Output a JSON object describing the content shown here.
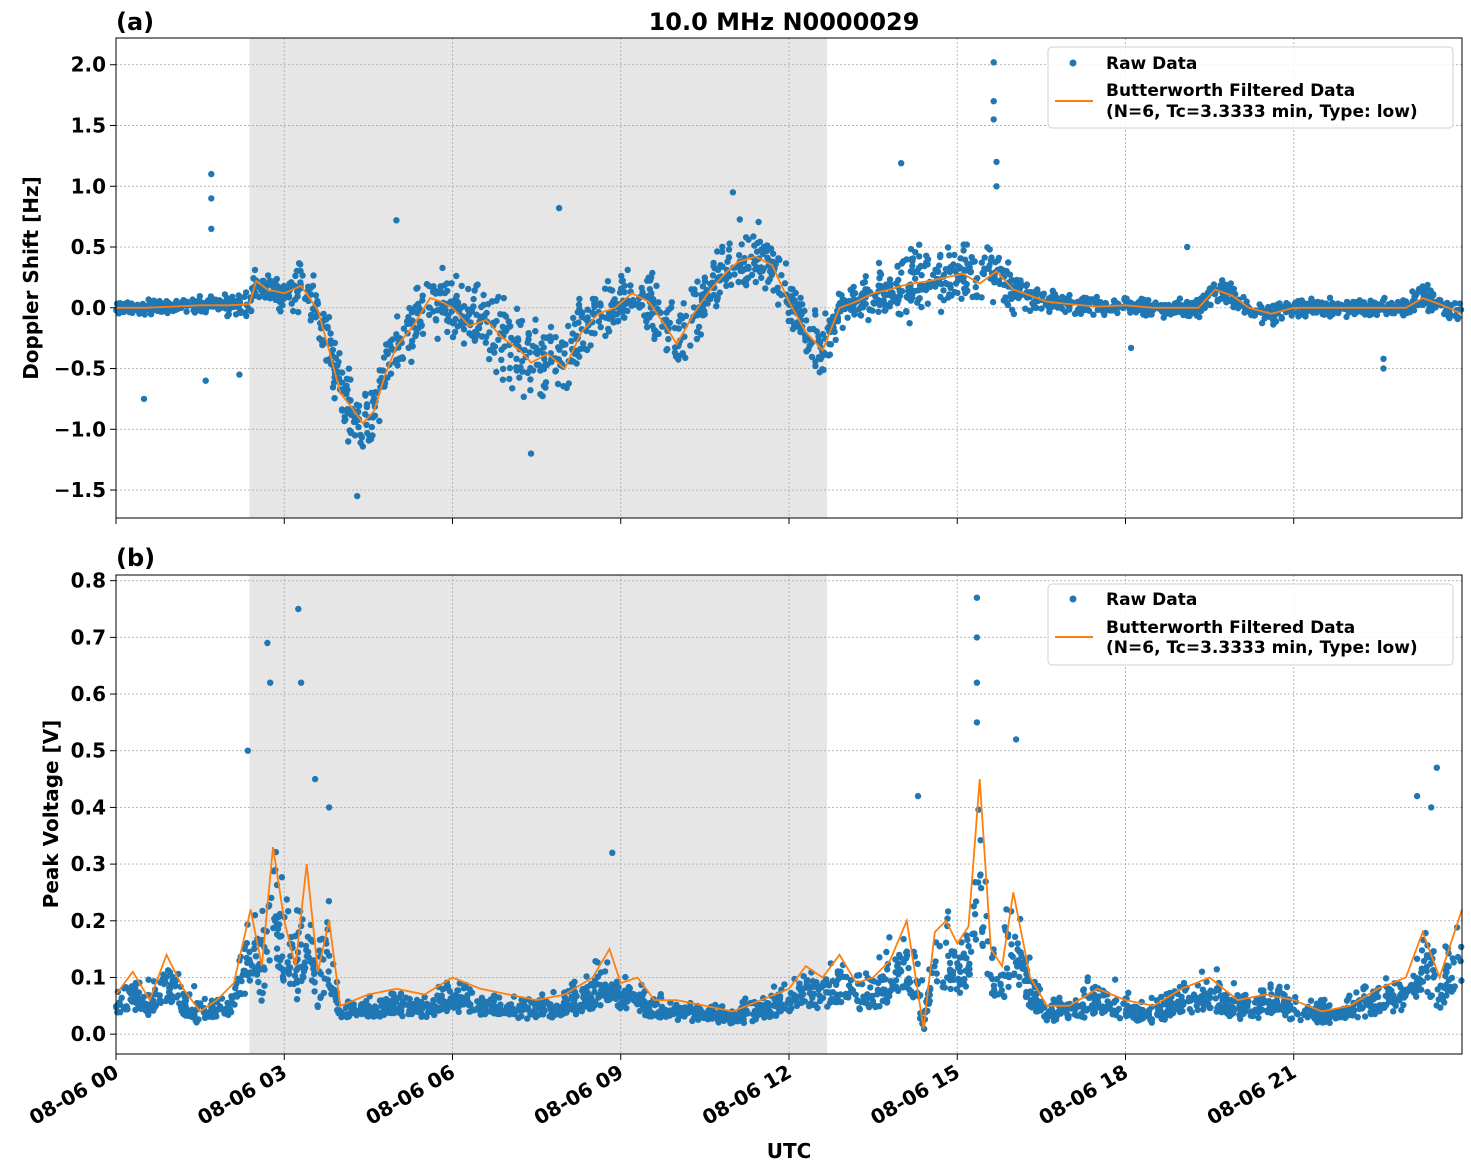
{
  "figure": {
    "title": "10.0 MHz N0000029",
    "xlabel": "UTC"
  },
  "colors": {
    "raw": "#1f77b4",
    "filtered": "#ff7f0e",
    "shade": "#e6e6e6"
  },
  "chart_data": [
    {
      "type": "scatter",
      "panel_label": "(a)",
      "title": "10.0 MHz N0000029",
      "ylabel": "Doppler Shift [Hz]",
      "xlabel": "",
      "x_unit": "hours UTC since 08-06 00:00",
      "xlim": [
        0,
        24
      ],
      "ylim": [
        -1.73,
        2.22
      ],
      "yticks": [
        2.0,
        1.5,
        1.0,
        0.5,
        0.0,
        -0.5,
        -1.0,
        -1.5
      ],
      "ytick_labels": [
        "2.0",
        "1.5",
        "1.0",
        "0.5",
        "0.0",
        "−0.5",
        "−1.0",
        "−1.5"
      ],
      "grid": true,
      "shaded_span": [
        2.38,
        12.68
      ],
      "legend": {
        "position": "top-right",
        "raw_label": "Raw Data",
        "filtered_label_line1": "Butterworth Filtered Data",
        "filtered_label_line2": "(N=6, Tc=3.3333 min, Type: low)"
      },
      "series": [
        {
          "name": "Butterworth Filtered Data",
          "kind": "line",
          "x": [
            0,
            0.5,
            1,
            1.5,
            2,
            2.38,
            2.5,
            2.7,
            3,
            3.3,
            3.6,
            3.8,
            4,
            4.2,
            4.4,
            4.6,
            4.8,
            5,
            5.3,
            5.6,
            5.8,
            6,
            6.3,
            6.6,
            6.9,
            7.2,
            7.4,
            7.7,
            8,
            8.3,
            8.6,
            8.9,
            9.2,
            9.5,
            9.8,
            10,
            10.3,
            10.6,
            10.9,
            11.1,
            11.4,
            11.7,
            12,
            12.3,
            12.6,
            12.9,
            13.2,
            13.5,
            13.8,
            14,
            14.2,
            14.5,
            14.8,
            15.1,
            15.4,
            15.7,
            16,
            16.3,
            16.6,
            17,
            17.5,
            18,
            18.5,
            19,
            19.3,
            19.6,
            19.9,
            20.2,
            20.6,
            21,
            21.5,
            22,
            22.5,
            23,
            23.3,
            23.6,
            24
          ],
          "y": [
            0.0,
            0.0,
            0.01,
            0.02,
            0.02,
            0.03,
            0.22,
            0.15,
            0.12,
            0.18,
            -0.02,
            -0.35,
            -0.7,
            -0.82,
            -0.95,
            -0.85,
            -0.55,
            -0.32,
            -0.15,
            0.08,
            0.05,
            0.0,
            -0.15,
            -0.1,
            -0.25,
            -0.35,
            -0.45,
            -0.38,
            -0.5,
            -0.2,
            -0.05,
            0.0,
            0.12,
            0.05,
            -0.15,
            -0.3,
            -0.05,
            0.15,
            0.3,
            0.38,
            0.42,
            0.35,
            0.05,
            -0.2,
            -0.35,
            0.0,
            0.05,
            0.12,
            0.15,
            0.18,
            0.2,
            0.22,
            0.25,
            0.28,
            0.2,
            0.3,
            0.15,
            0.1,
            0.05,
            0.03,
            0.01,
            0.02,
            0.0,
            0.0,
            0.0,
            0.15,
            0.1,
            0.0,
            -0.05,
            0.0,
            0.0,
            0.0,
            0.0,
            0.0,
            0.08,
            0.03,
            -0.05
          ]
        },
        {
          "name": "Raw Data",
          "kind": "scatter",
          "x": [
            0,
            0.5,
            1,
            1.5,
            2,
            2.38,
            2.5,
            2.7,
            3,
            3.3,
            3.6,
            3.8,
            4,
            4.2,
            4.4,
            4.6,
            4.8,
            5,
            5.3,
            5.6,
            5.8,
            6,
            6.3,
            6.6,
            6.9,
            7.2,
            7.4,
            7.7,
            8,
            8.3,
            8.6,
            8.9,
            9.2,
            9.5,
            9.8,
            10,
            10.3,
            10.6,
            10.9,
            11.1,
            11.4,
            11.7,
            12,
            12.3,
            12.6,
            12.9,
            13.2,
            13.5,
            13.8,
            14,
            14.2,
            14.5,
            14.8,
            15.1,
            15.4,
            15.7,
            16,
            16.3,
            16.6,
            17,
            17.5,
            18,
            18.5,
            19,
            19.3,
            19.6,
            19.9,
            20.2,
            20.6,
            21,
            21.5,
            22,
            22.5,
            23,
            23.3,
            23.6,
            24
          ],
          "spread": [
            0.08,
            0.08,
            0.1,
            0.12,
            0.12,
            0.13,
            0.2,
            0.18,
            0.2,
            0.3,
            0.35,
            0.38,
            0.4,
            0.45,
            0.45,
            0.4,
            0.38,
            0.36,
            0.35,
            0.38,
            0.4,
            0.38,
            0.4,
            0.45,
            0.5,
            0.5,
            0.48,
            0.45,
            0.4,
            0.35,
            0.35,
            0.32,
            0.35,
            0.38,
            0.38,
            0.4,
            0.35,
            0.35,
            0.4,
            0.4,
            0.38,
            0.35,
            0.32,
            0.32,
            0.3,
            0.2,
            0.22,
            0.28,
            0.35,
            0.4,
            0.45,
            0.35,
            0.3,
            0.35,
            0.35,
            0.35,
            0.3,
            0.2,
            0.15,
            0.1,
            0.1,
            0.1,
            0.1,
            0.1,
            0.12,
            0.18,
            0.12,
            0.1,
            0.12,
            0.1,
            0.1,
            0.1,
            0.12,
            0.12,
            0.15,
            0.15,
            0.12
          ],
          "outliers": [
            [
              1.7,
              1.1
            ],
            [
              1.7,
              0.9
            ],
            [
              1.7,
              0.65
            ],
            [
              0.5,
              -0.75
            ],
            [
              1.6,
              -0.6
            ],
            [
              2.2,
              -0.55
            ],
            [
              4.3,
              -1.55
            ],
            [
              5.0,
              0.72
            ],
            [
              7.4,
              -1.2
            ],
            [
              7.9,
              0.82
            ],
            [
              11.0,
              0.95
            ],
            [
              14.0,
              1.19
            ],
            [
              15.65,
              2.02
            ],
            [
              15.65,
              1.7
            ],
            [
              15.65,
              1.55
            ],
            [
              15.7,
              1.2
            ],
            [
              15.7,
              1.0
            ],
            [
              19.1,
              0.5
            ],
            [
              18.1,
              -0.33
            ],
            [
              22.6,
              -0.5
            ],
            [
              22.6,
              -0.42
            ]
          ]
        }
      ]
    },
    {
      "type": "scatter",
      "panel_label": "(b)",
      "ylabel": "Peak Voltage [V]",
      "xlabel": "UTC",
      "x_unit": "hours UTC since 08-06 00:00",
      "xlim": [
        0,
        24
      ],
      "ylim": [
        -0.035,
        0.81
      ],
      "yticks": [
        0.8,
        0.7,
        0.6,
        0.5,
        0.4,
        0.3,
        0.2,
        0.1,
        0.0
      ],
      "ytick_labels": [
        "0.8",
        "0.7",
        "0.6",
        "0.5",
        "0.4",
        "0.3",
        "0.2",
        "0.1",
        "0.0"
      ],
      "xticks": [
        0,
        3,
        6,
        9,
        12,
        15,
        18,
        21
      ],
      "xtick_labels": [
        "08-06 00",
        "08-06 03",
        "08-06 06",
        "08-06 09",
        "08-06 12",
        "08-06 15",
        "08-06 18",
        "08-06 21"
      ],
      "grid": true,
      "shaded_span": [
        2.38,
        12.68
      ],
      "legend": {
        "position": "top-right",
        "raw_label": "Raw Data",
        "filtered_label_line1": "Butterworth Filtered Data",
        "filtered_label_line2": "(N=6, Tc=3.3333 min, Type: low)"
      },
      "series": [
        {
          "name": "Butterworth Filtered Data",
          "kind": "line",
          "x": [
            0,
            0.3,
            0.6,
            0.9,
            1.2,
            1.5,
            1.8,
            2.1,
            2.4,
            2.6,
            2.8,
            3.0,
            3.2,
            3.4,
            3.6,
            3.8,
            4.0,
            4.5,
            5.0,
            5.5,
            6.0,
            6.5,
            7.0,
            7.5,
            8.0,
            8.5,
            8.8,
            9.0,
            9.3,
            9.6,
            10.0,
            10.5,
            11.0,
            11.5,
            12.0,
            12.3,
            12.6,
            12.9,
            13.2,
            13.5,
            13.8,
            14.1,
            14.4,
            14.6,
            14.8,
            15.0,
            15.2,
            15.4,
            15.6,
            15.8,
            16.0,
            16.3,
            16.6,
            17.0,
            17.5,
            18.0,
            18.5,
            19.0,
            19.5,
            20.0,
            20.5,
            21.0,
            21.5,
            22.0,
            22.5,
            23.0,
            23.3,
            23.6,
            24
          ],
          "y": [
            0.07,
            0.11,
            0.06,
            0.14,
            0.08,
            0.04,
            0.06,
            0.09,
            0.22,
            0.12,
            0.33,
            0.2,
            0.12,
            0.3,
            0.11,
            0.2,
            0.05,
            0.07,
            0.08,
            0.07,
            0.1,
            0.08,
            0.07,
            0.06,
            0.07,
            0.1,
            0.15,
            0.09,
            0.1,
            0.06,
            0.06,
            0.05,
            0.04,
            0.06,
            0.08,
            0.12,
            0.1,
            0.14,
            0.09,
            0.1,
            0.13,
            0.2,
            0.01,
            0.18,
            0.2,
            0.16,
            0.19,
            0.45,
            0.15,
            0.12,
            0.25,
            0.1,
            0.05,
            0.05,
            0.08,
            0.06,
            0.05,
            0.08,
            0.1,
            0.06,
            0.07,
            0.06,
            0.04,
            0.05,
            0.08,
            0.1,
            0.18,
            0.1,
            0.22
          ]
        },
        {
          "name": "Raw Data",
          "kind": "scatter",
          "x": [
            0,
            0.3,
            0.6,
            0.9,
            1.2,
            1.5,
            1.8,
            2.1,
            2.4,
            2.6,
            2.8,
            3.0,
            3.2,
            3.4,
            3.6,
            3.8,
            4.0,
            4.5,
            5.0,
            5.5,
            6.0,
            6.5,
            7.0,
            7.5,
            8.0,
            8.5,
            8.8,
            9.0,
            9.3,
            9.6,
            10.0,
            10.5,
            11.0,
            11.5,
            12.0,
            12.3,
            12.6,
            12.9,
            13.2,
            13.5,
            13.8,
            14.1,
            14.4,
            14.6,
            14.8,
            15.0,
            15.2,
            15.4,
            15.6,
            15.8,
            16.0,
            16.3,
            16.6,
            17.0,
            17.5,
            18.0,
            18.5,
            19.0,
            19.5,
            20.0,
            20.5,
            21.0,
            21.5,
            22.0,
            22.5,
            23.0,
            23.3,
            23.6,
            24
          ],
          "spread": [
            0.06,
            0.07,
            0.08,
            0.1,
            0.08,
            0.05,
            0.05,
            0.07,
            0.2,
            0.2,
            0.3,
            0.25,
            0.3,
            0.25,
            0.18,
            0.2,
            0.04,
            0.04,
            0.05,
            0.05,
            0.06,
            0.05,
            0.05,
            0.05,
            0.06,
            0.08,
            0.1,
            0.08,
            0.06,
            0.05,
            0.04,
            0.04,
            0.04,
            0.05,
            0.07,
            0.1,
            0.12,
            0.1,
            0.09,
            0.1,
            0.12,
            0.15,
            0.1,
            0.15,
            0.18,
            0.12,
            0.15,
            0.3,
            0.15,
            0.15,
            0.2,
            0.1,
            0.06,
            0.06,
            0.08,
            0.06,
            0.06,
            0.08,
            0.09,
            0.07,
            0.08,
            0.07,
            0.06,
            0.07,
            0.09,
            0.1,
            0.15,
            0.15,
            0.2
          ],
          "outliers": [
            [
              2.35,
              0.5
            ],
            [
              2.7,
              0.69
            ],
            [
              2.75,
              0.62
            ],
            [
              3.25,
              0.75
            ],
            [
              3.3,
              0.62
            ],
            [
              3.55,
              0.45
            ],
            [
              3.8,
              0.4
            ],
            [
              8.85,
              0.32
            ],
            [
              15.35,
              0.77
            ],
            [
              15.35,
              0.7
            ],
            [
              15.35,
              0.62
            ],
            [
              15.35,
              0.55
            ],
            [
              16.05,
              0.52
            ],
            [
              14.3,
              0.42
            ],
            [
              23.2,
              0.42
            ],
            [
              23.55,
              0.47
            ],
            [
              23.45,
              0.4
            ]
          ]
        }
      ]
    }
  ]
}
